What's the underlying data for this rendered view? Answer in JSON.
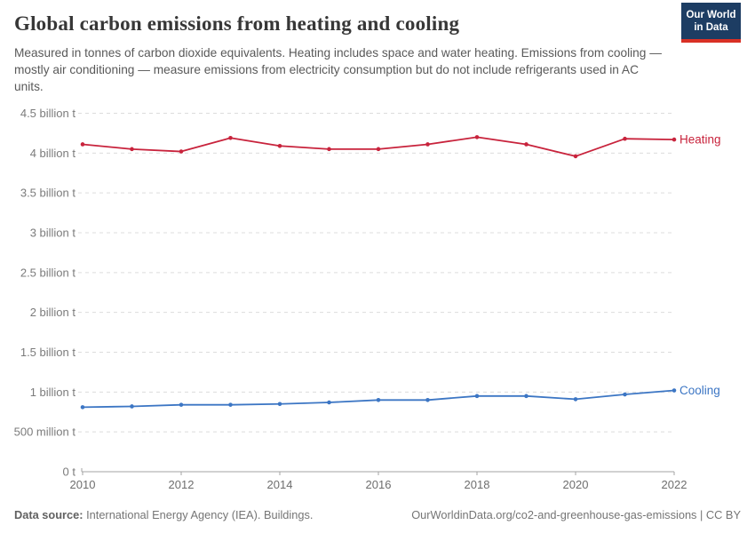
{
  "header": {
    "title": "Global carbon emissions from heating and cooling",
    "subtitle": "Measured in tonnes of carbon dioxide equivalents. Heating includes space and water heating. Emissions from cooling — mostly air conditioning — measure emissions from electricity consumption but do not include refrigerants used in AC units.",
    "logo": {
      "line1": "Our World",
      "line2": "in Data",
      "bg_color": "#1d3d63",
      "bar_color": "#d93025"
    }
  },
  "chart_data": {
    "type": "line",
    "title": "Global carbon emissions from heating and cooling",
    "unit": "tonnes of CO2 equivalents",
    "x": [
      2010,
      2011,
      2012,
      2013,
      2014,
      2015,
      2016,
      2017,
      2018,
      2019,
      2020,
      2021,
      2022
    ],
    "series": [
      {
        "name": "Heating",
        "color": "#c8233c",
        "values_billion_t": [
          4.11,
          4.05,
          4.02,
          4.19,
          4.09,
          4.05,
          4.05,
          4.11,
          4.2,
          4.11,
          3.96,
          4.18,
          4.17
        ]
      },
      {
        "name": "Cooling",
        "color": "#3c76c4",
        "values_billion_t": [
          0.81,
          0.82,
          0.84,
          0.84,
          0.85,
          0.87,
          0.9,
          0.9,
          0.95,
          0.95,
          0.91,
          0.97,
          1.02
        ]
      }
    ],
    "xlim": [
      2010,
      2022
    ],
    "ylim": [
      0,
      4.5
    ],
    "x_ticks": [
      2010,
      2012,
      2014,
      2016,
      2018,
      2020,
      2022
    ],
    "y_ticks": [
      {
        "value": 0,
        "label": "0 t"
      },
      {
        "value": 0.5,
        "label": "500 million t"
      },
      {
        "value": 1,
        "label": "1 billion t"
      },
      {
        "value": 1.5,
        "label": "1.5 billion t"
      },
      {
        "value": 2,
        "label": "2 billion t"
      },
      {
        "value": 2.5,
        "label": "2.5 billion t"
      },
      {
        "value": 3,
        "label": "3 billion t"
      },
      {
        "value": 3.5,
        "label": "3.5 billion t"
      },
      {
        "value": 4,
        "label": "4 billion t"
      },
      {
        "value": 4.5,
        "label": "4.5 billion t"
      }
    ],
    "legend_position": "end-of-line-labels",
    "grid": true
  },
  "footer": {
    "source_label": "Data source:",
    "source_text": " International Energy Agency (IEA). Buildings.",
    "credit": "OurWorldinData.org/co2-and-greenhouse-gas-emissions | CC BY"
  }
}
